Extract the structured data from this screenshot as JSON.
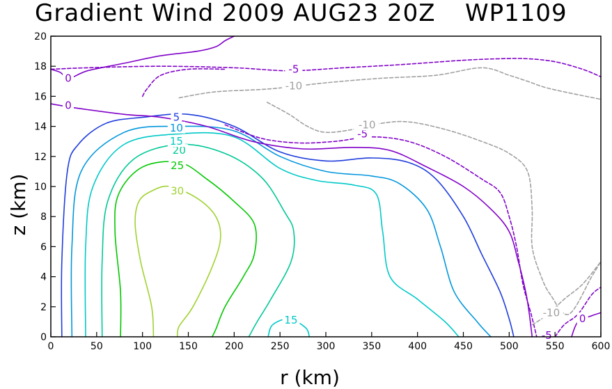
{
  "chart_data": {
    "type": "contour",
    "title": "Gradient Wind 2009 AUG23 20Z",
    "storm_id": "WP1109",
    "xlabel": "r (km)",
    "ylabel": "z (km)",
    "xlim": [
      0,
      600
    ],
    "ylim": [
      0,
      20
    ],
    "xticks": [
      0,
      50,
      100,
      150,
      200,
      250,
      300,
      350,
      400,
      450,
      500,
      550,
      600
    ],
    "yticks": [
      0,
      2,
      4,
      6,
      8,
      10,
      12,
      14,
      16,
      18,
      20
    ],
    "contours": [
      {
        "id": "p30",
        "level": 30,
        "color": "#a0d232",
        "dashed": false,
        "points": [
          [
            112,
            0
          ],
          [
            110,
            2
          ],
          [
            98,
            5
          ],
          [
            92,
            7.5
          ],
          [
            96,
            9
          ],
          [
            110,
            9.7
          ],
          [
            130,
            10
          ],
          [
            160,
            9.2
          ],
          [
            180,
            8
          ],
          [
            185,
            6.5
          ],
          [
            175,
            4.5
          ],
          [
            155,
            2
          ],
          [
            140,
            0.7
          ],
          [
            138,
            0
          ]
        ],
        "labels": [
          {
            "text": "30",
            "x": 138,
            "y": 9.7
          }
        ]
      },
      {
        "id": "p25",
        "level": 25,
        "color": "#00c800",
        "dashed": false,
        "points": [
          [
            76,
            0
          ],
          [
            76,
            3
          ],
          [
            70,
            7
          ],
          [
            74,
            9.5
          ],
          [
            100,
            11.3
          ],
          [
            140,
            11.6
          ],
          [
            170,
            10.5
          ],
          [
            200,
            9
          ],
          [
            222,
            7.5
          ],
          [
            222,
            5.5
          ],
          [
            210,
            4
          ],
          [
            190,
            2
          ],
          [
            180,
            0.5
          ],
          [
            176,
            0
          ]
        ],
        "labels": [
          {
            "text": "25",
            "x": 138,
            "y": 11.4
          }
        ]
      },
      {
        "id": "p20",
        "level": 20,
        "color": "#00c896",
        "dashed": false,
        "points": [
          [
            56,
            0
          ],
          [
            56,
            5
          ],
          [
            62,
            9
          ],
          [
            90,
            11.8
          ],
          [
            140,
            12.8
          ],
          [
            190,
            12.2
          ],
          [
            230,
            10.6
          ],
          [
            255,
            8.3
          ],
          [
            265,
            7
          ],
          [
            262,
            5
          ],
          [
            240,
            2.5
          ],
          [
            225,
            1
          ],
          [
            216,
            0
          ]
        ],
        "labels": [
          {
            "text": "20",
            "x": 140,
            "y": 12.4
          }
        ]
      },
      {
        "id": "p15",
        "level": 15,
        "color": "#00c8c8",
        "dashed": false,
        "points": [
          [
            38,
            0
          ],
          [
            38,
            6
          ],
          [
            46,
            10
          ],
          [
            80,
            12.8
          ],
          [
            140,
            13.5
          ],
          [
            200,
            13.3
          ],
          [
            250,
            11.2
          ],
          [
            290,
            10.4
          ],
          [
            330,
            10.1
          ],
          [
            355,
            9.5
          ],
          [
            362,
            7
          ],
          [
            370,
            4
          ],
          [
            400,
            2.5
          ],
          [
            430,
            1
          ],
          [
            445,
            0
          ]
        ],
        "labels": [
          {
            "text": "15",
            "x": 137,
            "y": 13.0
          }
        ]
      },
      {
        "id": "p15b",
        "level": 15,
        "color": "#00c8c8",
        "dashed": false,
        "points": [
          [
            237,
            0
          ],
          [
            242,
            0.8
          ],
          [
            260,
            1.2
          ],
          [
            278,
            0.6
          ],
          [
            282,
            0
          ]
        ],
        "labels": [
          {
            "text": "15",
            "x": 262,
            "y": 1.1
          }
        ]
      },
      {
        "id": "p10",
        "level": 10,
        "color": "#0096dc",
        "dashed": false,
        "points": [
          [
            23,
            0
          ],
          [
            23,
            6
          ],
          [
            33,
            11
          ],
          [
            80,
            13.6
          ],
          [
            140,
            14
          ],
          [
            200,
            13.7
          ],
          [
            250,
            12
          ],
          [
            300,
            11
          ],
          [
            350,
            10.7
          ],
          [
            380,
            10.2
          ],
          [
            410,
            8.5
          ],
          [
            425,
            6
          ],
          [
            440,
            3
          ],
          [
            465,
            1
          ],
          [
            480,
            0
          ]
        ],
        "labels": [
          {
            "text": "10",
            "x": 137,
            "y": 13.9
          }
        ]
      },
      {
        "id": "p5",
        "level": 5,
        "color": "#1e3cdc",
        "dashed": false,
        "points": [
          [
            12,
            0
          ],
          [
            12,
            5
          ],
          [
            18,
            11
          ],
          [
            30,
            12.8
          ],
          [
            60,
            14.2
          ],
          [
            100,
            14.6
          ],
          [
            150,
            14.8
          ],
          [
            200,
            14
          ],
          [
            250,
            12.3
          ],
          [
            300,
            11.7
          ],
          [
            350,
            11.9
          ],
          [
            390,
            11.6
          ],
          [
            420,
            10.5
          ],
          [
            450,
            8
          ],
          [
            470,
            5.5
          ],
          [
            490,
            3
          ],
          [
            500,
            1.2
          ],
          [
            505,
            0
          ]
        ],
        "labels": [
          {
            "text": "5",
            "x": 137,
            "y": 14.6
          }
        ]
      },
      {
        "id": "p0",
        "level": 0,
        "color": "#8000c8",
        "dashed": false,
        "points": [
          [
            0,
            15.5
          ],
          [
            30,
            15.2
          ],
          [
            80,
            14.8
          ],
          [
            120,
            14.6
          ],
          [
            170,
            14
          ],
          [
            220,
            13
          ],
          [
            275,
            12.5
          ],
          [
            330,
            12.6
          ],
          [
            370,
            12.4
          ],
          [
            410,
            11.3
          ],
          [
            450,
            10
          ],
          [
            480,
            8.5
          ],
          [
            500,
            7
          ],
          [
            510,
            5
          ],
          [
            518,
            3
          ],
          [
            522,
            1.5
          ],
          [
            525,
            0
          ]
        ],
        "labels": [
          {
            "text": "0",
            "x": 19,
            "y": 15.4
          }
        ]
      },
      {
        "id": "n5",
        "level": -5,
        "color": "#8000c8",
        "dashed": true,
        "points": [
          [
            190,
            14.1
          ],
          [
            230,
            13.2
          ],
          [
            270,
            12.9
          ],
          [
            310,
            13
          ],
          [
            350,
            13.3
          ],
          [
            390,
            13
          ],
          [
            430,
            12
          ],
          [
            470,
            10.5
          ],
          [
            490,
            9.6
          ],
          [
            500,
            8
          ],
          [
            508,
            6
          ],
          [
            515,
            3.5
          ],
          [
            524,
            1.5
          ],
          [
            530,
            0
          ]
        ],
        "labels": [
          {
            "text": "-5",
            "x": 340,
            "y": 13.5
          }
        ]
      },
      {
        "id": "n10",
        "level": -10,
        "color": "#a0a0a0",
        "dashed": true,
        "points": [
          [
            236,
            15.6
          ],
          [
            260,
            14.8
          ],
          [
            280,
            14
          ],
          [
            300,
            13.6
          ],
          [
            330,
            13.8
          ],
          [
            360,
            14.2
          ],
          [
            390,
            14.3
          ],
          [
            430,
            13.8
          ],
          [
            470,
            13
          ],
          [
            500,
            12.2
          ],
          [
            520,
            11
          ],
          [
            525,
            8.5
          ],
          [
            525,
            6
          ],
          [
            535,
            4
          ],
          [
            545,
            2.8
          ],
          [
            565,
            1.5
          ],
          [
            590,
            4
          ],
          [
            600,
            5
          ]
        ],
        "labels": [
          {
            "text": "-10",
            "x": 345,
            "y": 14.1
          }
        ]
      },
      {
        "id": "n10t",
        "level": -10,
        "color": "#a0a0a0",
        "dashed": true,
        "points": [
          [
            140,
            15.9
          ],
          [
            180,
            16.3
          ],
          [
            240,
            16.5
          ],
          [
            300,
            16.9
          ],
          [
            360,
            17.2
          ],
          [
            420,
            17.4
          ],
          [
            470,
            17.9
          ],
          [
            500,
            17.4
          ],
          [
            520,
            17
          ],
          [
            545,
            16.5
          ],
          [
            600,
            15.8
          ]
        ],
        "labels": [
          {
            "text": "-10",
            "x": 265,
            "y": 16.7
          }
        ]
      },
      {
        "id": "n5t",
        "level": -5,
        "color": "#8000c8",
        "dashed": true,
        "points": [
          [
            0,
            17.8
          ],
          [
            40,
            17.9
          ],
          [
            120,
            18
          ],
          [
            200,
            17.9
          ],
          [
            260,
            17.7
          ],
          [
            320,
            17.9
          ],
          [
            380,
            18.1
          ],
          [
            450,
            18.4
          ],
          [
            490,
            18.5
          ],
          [
            520,
            18.5
          ],
          [
            550,
            18.3
          ],
          [
            580,
            17.8
          ],
          [
            600,
            17.3
          ]
        ],
        "labels": [
          {
            "text": "-5",
            "x": 265,
            "y": 17.8
          }
        ]
      },
      {
        "id": "n5w",
        "level": -5,
        "color": "#8000c8",
        "dashed": true,
        "points": [
          [
            100,
            16
          ],
          [
            105,
            16.5
          ],
          [
            120,
            17.4
          ],
          [
            150,
            17.8
          ],
          [
            190,
            17.8
          ]
        ],
        "labels": []
      },
      {
        "id": "n10r",
        "level": -10,
        "color": "#a0a0a0",
        "dashed": true,
        "points": [
          [
            525,
            0.8
          ],
          [
            540,
            1.4
          ],
          [
            560,
            2.5
          ],
          [
            580,
            3.5
          ],
          [
            600,
            5
          ]
        ],
        "labels": [
          {
            "text": "-10",
            "x": 546,
            "y": 1.6
          }
        ]
      },
      {
        "id": "n5r",
        "level": -5,
        "color": "#8000c8",
        "dashed": true,
        "points": [
          [
            550,
            0
          ],
          [
            560,
            0.8
          ],
          [
            575,
            1.5
          ],
          [
            590,
            2.8
          ],
          [
            600,
            3.3
          ]
        ],
        "labels": [
          {
            "text": "-5",
            "x": 541,
            "y": 0.1
          }
        ]
      },
      {
        "id": "p0r",
        "level": 0,
        "color": "#8000c8",
        "dashed": false,
        "points": [
          [
            568,
            0
          ],
          [
            575,
            1
          ],
          [
            590,
            1.4
          ],
          [
            600,
            1.6
          ]
        ],
        "labels": [
          {
            "text": "0",
            "x": 580,
            "y": 1.2
          }
        ]
      },
      {
        "id": "p0tl",
        "level": 0,
        "color": "#8000c8",
        "dashed": false,
        "points": [
          [
            0,
            17.8
          ],
          [
            10,
            17.6
          ],
          [
            20,
            17.2
          ],
          [
            40,
            17.7
          ],
          [
            80,
            18.2
          ],
          [
            120,
            18.7
          ],
          [
            160,
            19.0
          ],
          [
            180,
            19.3
          ],
          [
            190,
            19.7
          ],
          [
            200,
            20
          ]
        ],
        "labels": [
          {
            "text": "0",
            "x": 19,
            "y": 17.2
          }
        ]
      }
    ]
  }
}
